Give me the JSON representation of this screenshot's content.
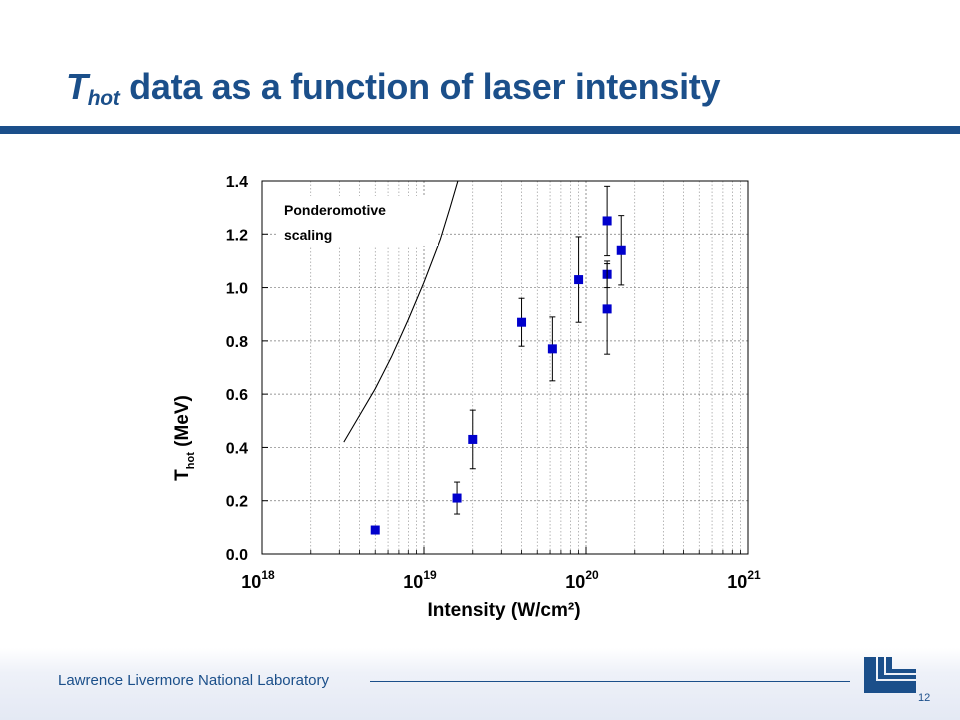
{
  "slide": {
    "title_T": "T",
    "title_sub": "hot",
    "title_rest": " data as a function of laser intensity",
    "footer_lab": "Lawrence Livermore National Laboratory",
    "page_number": "12"
  },
  "colors": {
    "brand": "#1b4f8a",
    "marker": "#0000cc"
  },
  "chart_data": {
    "type": "scatter",
    "title": "",
    "xlabel": "Intensity (W/cm²)",
    "ylabel": "T hot (MeV)",
    "xscale": "log",
    "xlim": [
      1e+18,
      1e+21
    ],
    "ylim": [
      0,
      1.4
    ],
    "grid": true,
    "xticks": [
      {
        "value": 1e+18,
        "base": "10",
        "exp": "18"
      },
      {
        "value": 1e+19,
        "base": "10",
        "exp": "19"
      },
      {
        "value": 1e+20,
        "base": "10",
        "exp": "20"
      },
      {
        "value": 1e+21,
        "base": "10",
        "exp": "21"
      }
    ],
    "yticks": [
      "0.0",
      "0.2",
      "0.4",
      "0.6",
      "0.8",
      "1.0",
      "1.2",
      "1.4"
    ],
    "series": [
      {
        "type": "scatter",
        "points": [
          {
            "x": 5e+18,
            "y": 0.09,
            "lo": 0.08,
            "hi": 0.1
          },
          {
            "x": 1.6e+19,
            "y": 0.21,
            "lo": 0.15,
            "hi": 0.27
          },
          {
            "x": 2e+19,
            "y": 0.43,
            "lo": 0.32,
            "hi": 0.54
          },
          {
            "x": 4e+19,
            "y": 0.87,
            "lo": 0.78,
            "hi": 0.96
          },
          {
            "x": 6.2e+19,
            "y": 0.77,
            "lo": 0.65,
            "hi": 0.89
          },
          {
            "x": 9e+19,
            "y": 1.03,
            "lo": 0.87,
            "hi": 1.19
          },
          {
            "x": 1.35e+20,
            "y": 1.25,
            "lo": 1.12,
            "hi": 1.38
          },
          {
            "x": 1.35e+20,
            "y": 1.05,
            "lo": 1.0,
            "hi": 1.1
          },
          {
            "x": 1.35e+20,
            "y": 0.92,
            "lo": 0.75,
            "hi": 1.09
          },
          {
            "x": 1.65e+20,
            "y": 1.14,
            "lo": 1.01,
            "hi": 1.27
          }
        ]
      },
      {
        "type": "line",
        "annotation": "Ponderomotive scaling",
        "points": [
          {
            "x": 3.2e+18,
            "y": 0.42
          },
          {
            "x": 4e+18,
            "y": 0.52
          },
          {
            "x": 5e+18,
            "y": 0.62
          },
          {
            "x": 6.3e+18,
            "y": 0.74
          },
          {
            "x": 8e+18,
            "y": 0.88
          },
          {
            "x": 1e+19,
            "y": 1.02
          },
          {
            "x": 1.26e+19,
            "y": 1.18
          },
          {
            "x": 1.45e+19,
            "y": 1.3
          },
          {
            "x": 1.62e+19,
            "y": 1.4
          }
        ]
      }
    ],
    "annotations": [
      {
        "line1": "Ponderomotive",
        "line2": "scaling"
      }
    ]
  }
}
